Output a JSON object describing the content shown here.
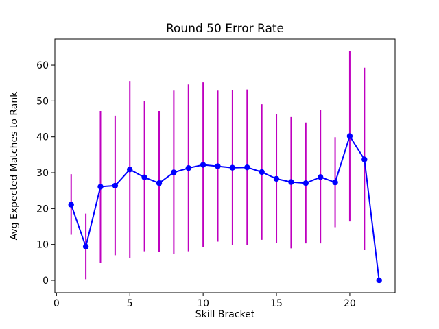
{
  "figure": {
    "background": "#ffffff",
    "title": "Round 50 Error Rate"
  },
  "chart_data": {
    "type": "line",
    "title": "Round 50 Error Rate",
    "xlabel": "Skill Bracket",
    "ylabel": "Avg Expected Matches to Rank",
    "x": [
      1,
      2,
      3,
      4,
      5,
      6,
      7,
      8,
      9,
      10,
      11,
      12,
      13,
      14,
      15,
      16,
      17,
      18,
      19,
      20,
      21,
      22
    ],
    "y": [
      21.1,
      9.4,
      26.1,
      26.4,
      30.9,
      28.7,
      27.1,
      30.1,
      31.3,
      32.2,
      31.8,
      31.4,
      31.5,
      30.2,
      28.3,
      27.4,
      27.1,
      28.8,
      27.3,
      40.2,
      33.7,
      0.0
    ],
    "yerr_low": [
      12.7,
      0.3,
      4.8,
      7.0,
      6.2,
      8.1,
      7.9,
      7.3,
      8.1,
      9.3,
      10.8,
      9.9,
      9.8,
      11.3,
      10.4,
      8.9,
      10.3,
      10.3,
      14.8,
      16.4,
      8.4,
      0.0
    ],
    "yerr_high": [
      29.6,
      18.6,
      47.2,
      45.9,
      55.6,
      50.0,
      47.2,
      52.9,
      54.6,
      55.2,
      52.9,
      53.0,
      53.2,
      49.1,
      46.3,
      45.7,
      44.0,
      47.4,
      39.9,
      64.0,
      59.3,
      0.0
    ],
    "x_ticks": [
      0,
      5,
      10,
      15,
      20
    ],
    "y_ticks": [
      0,
      10,
      20,
      30,
      40,
      50,
      60
    ],
    "xlim": [
      -0.11,
      23.09
    ],
    "ylim": [
      -3.44,
      67.27
    ],
    "grid": false,
    "legend": null,
    "line_color": "#0000ff",
    "marker_color": "#0000ff",
    "errorbar_color": "#bf00bf",
    "frame_color": "#000000",
    "background": "#ffffff"
  }
}
